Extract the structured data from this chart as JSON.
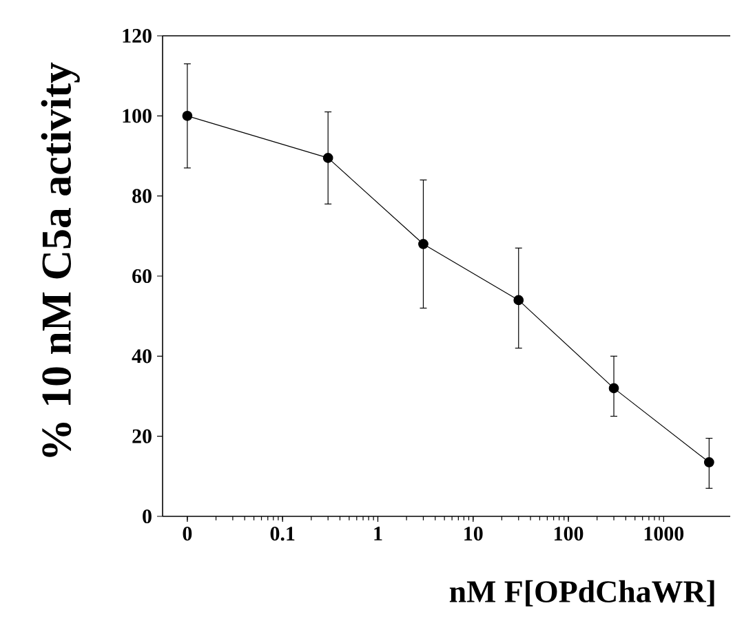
{
  "chart_data": {
    "type": "line",
    "xlabel": "nM F[OPdChaWR]",
    "ylabel": "% 10 nM C5a activity",
    "log": "x",
    "xlim": [
      0.0055,
      5000
    ],
    "ylim": [
      0,
      120
    ],
    "xticks": [
      {
        "value": 0.01,
        "label": "0"
      },
      0.1,
      1,
      10,
      100,
      1000
    ],
    "yticks": [
      0,
      20,
      40,
      60,
      80,
      100,
      120
    ],
    "marker": "circle",
    "line_style": "solid",
    "grid": false,
    "series": [
      {
        "color": "#000000",
        "x": [
          0.01,
          0.3,
          3,
          30,
          300,
          3000
        ],
        "values": [
          100,
          89.5,
          68,
          54,
          32,
          13.5
        ],
        "errors": [
          [
            87,
            113
          ],
          [
            78,
            101
          ],
          [
            52,
            84
          ],
          [
            42,
            67
          ],
          [
            25,
            40
          ],
          [
            7,
            19.5
          ]
        ]
      }
    ]
  }
}
